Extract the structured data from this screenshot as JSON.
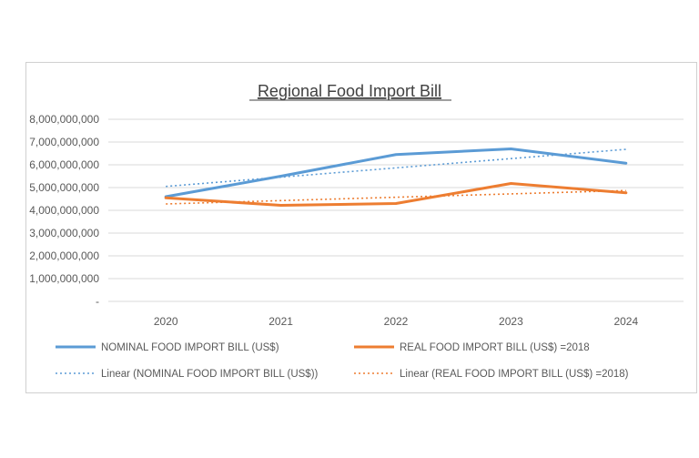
{
  "chart_data": {
    "type": "line",
    "title": "Regional Food Import Bill",
    "xlabel": "",
    "ylabel": "",
    "categories": [
      "2020",
      "2021",
      "2022",
      "2023",
      "2024"
    ],
    "ylim": [
      0,
      8000000000
    ],
    "yticks": [
      {
        "value": 0,
        "label": "-"
      },
      {
        "value": 1000000000,
        "label": "1,000,000,000"
      },
      {
        "value": 2000000000,
        "label": "2,000,000,000"
      },
      {
        "value": 3000000000,
        "label": "3,000,000,000"
      },
      {
        "value": 4000000000,
        "label": "4,000,000,000"
      },
      {
        "value": 5000000000,
        "label": "5,000,000,000"
      },
      {
        "value": 6000000000,
        "label": "6,000,000,000"
      },
      {
        "value": 7000000000,
        "label": "7,000,000,000"
      },
      {
        "value": 8000000000,
        "label": "8,000,000,000"
      }
    ],
    "grid": true,
    "legend_position": "bottom",
    "series": [
      {
        "name": "NOMINAL FOOD IMPORT BILL (US$)",
        "color": "#5b9bd5",
        "values": [
          4600000000,
          5500000000,
          6450000000,
          6700000000,
          6070000000
        ]
      },
      {
        "name": "REAL FOOD IMPORT BILL (US$) =2018",
        "color": "#ed7d31",
        "values": [
          4550000000,
          4220000000,
          4300000000,
          5180000000,
          4770000000
        ]
      }
    ],
    "trendlines": [
      {
        "name": "Linear (NOMINAL FOOD IMPORT BILL (US$))",
        "color": "#5b9bd5",
        "start": 5050000000,
        "end": 6680000000
      },
      {
        "name": "Linear (REAL FOOD IMPORT BILL (US$) =2018)",
        "color": "#ed7d31",
        "start": 4280000000,
        "end": 4870000000
      }
    ]
  }
}
